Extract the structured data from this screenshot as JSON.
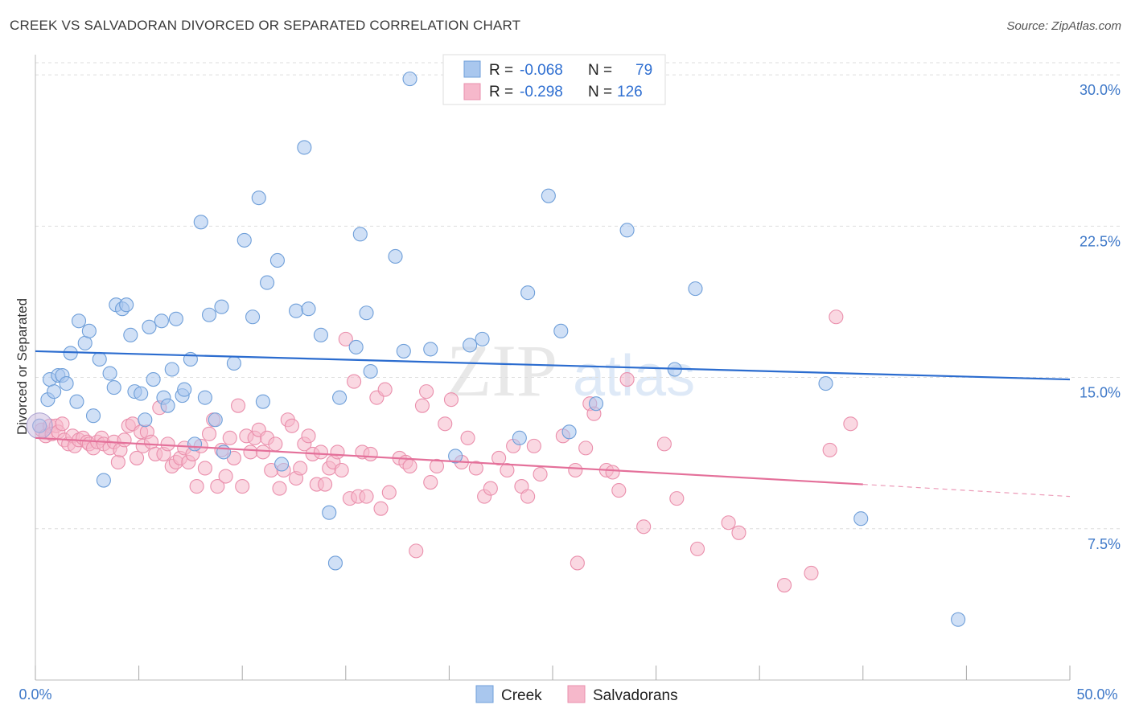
{
  "header": {
    "title": "CREEK VS SALVADORAN DIVORCED OR SEPARATED CORRELATION CHART",
    "source": "Source: ZipAtlas.com"
  },
  "colors": {
    "creek_fill": "#a9c7ee",
    "creek_stroke": "#6f9fd9",
    "creek_line": "#2b6ccf",
    "salv_fill": "#f6b8cb",
    "salv_stroke": "#ea8fac",
    "salv_line": "#e4709a",
    "tick_label": "#3e78c8"
  },
  "legend": {
    "r_label": "R =",
    "n_label": "N =",
    "creek_r": "-0.068",
    "creek_n": "79",
    "salv_r": "-0.298",
    "salv_n": "126"
  },
  "bottom_legend": {
    "creek": "Creek",
    "salv": "Salvadorans"
  },
  "watermark": {
    "zip": "ZIP",
    "atlas": "atlas"
  },
  "chart_data": {
    "type": "scatter",
    "xlabel": "",
    "ylabel": "Divorced or Separated",
    "xlim": [
      0,
      50
    ],
    "ylim": [
      0,
      31
    ],
    "x_tick_labels": [
      "0.0%",
      "50.0%"
    ],
    "y_ticks": [
      7.5,
      15.0,
      22.5,
      30.0
    ],
    "y_tick_labels": [
      "7.5%",
      "15.0%",
      "22.5%",
      "30.0%"
    ],
    "grid": true,
    "series": [
      {
        "name": "Creek",
        "trend": {
          "x": [
            0,
            50
          ],
          "y": [
            16.3,
            14.9
          ]
        },
        "points": [
          [
            0.2,
            12.6
          ],
          [
            0.6,
            13.9
          ],
          [
            0.7,
            14.9
          ],
          [
            0.9,
            14.3
          ],
          [
            1.1,
            15.1
          ],
          [
            1.3,
            15.1
          ],
          [
            1.5,
            14.7
          ],
          [
            1.7,
            16.2
          ],
          [
            2.0,
            13.8
          ],
          [
            2.1,
            17.8
          ],
          [
            2.4,
            16.7
          ],
          [
            2.6,
            17.3
          ],
          [
            2.8,
            13.1
          ],
          [
            3.1,
            15.9
          ],
          [
            3.3,
            9.9
          ],
          [
            3.6,
            15.2
          ],
          [
            3.8,
            14.5
          ],
          [
            3.9,
            18.6
          ],
          [
            4.2,
            18.4
          ],
          [
            4.4,
            18.6
          ],
          [
            4.6,
            17.1
          ],
          [
            4.8,
            14.3
          ],
          [
            5.1,
            14.2
          ],
          [
            5.3,
            12.9
          ],
          [
            5.5,
            17.5
          ],
          [
            5.7,
            14.9
          ],
          [
            6.1,
            17.8
          ],
          [
            6.2,
            14.0
          ],
          [
            6.4,
            13.6
          ],
          [
            6.6,
            15.4
          ],
          [
            6.8,
            17.9
          ],
          [
            7.1,
            14.1
          ],
          [
            7.2,
            14.4
          ],
          [
            7.5,
            15.9
          ],
          [
            7.7,
            11.7
          ],
          [
            8.0,
            22.7
          ],
          [
            8.2,
            14.0
          ],
          [
            8.4,
            18.1
          ],
          [
            8.7,
            12.9
          ],
          [
            9.0,
            18.5
          ],
          [
            9.1,
            11.3
          ],
          [
            9.6,
            15.7
          ],
          [
            10.1,
            21.8
          ],
          [
            10.5,
            18.0
          ],
          [
            10.8,
            23.9
          ],
          [
            11.0,
            13.8
          ],
          [
            11.2,
            19.7
          ],
          [
            11.7,
            20.8
          ],
          [
            11.9,
            10.7
          ],
          [
            12.6,
            18.3
          ],
          [
            13.0,
            26.4
          ],
          [
            13.2,
            18.4
          ],
          [
            13.8,
            17.1
          ],
          [
            14.2,
            8.3
          ],
          [
            14.5,
            5.8
          ],
          [
            14.7,
            14.0
          ],
          [
            15.5,
            16.5
          ],
          [
            15.7,
            22.1
          ],
          [
            16.0,
            18.2
          ],
          [
            16.2,
            15.3
          ],
          [
            17.4,
            21.0
          ],
          [
            17.8,
            16.3
          ],
          [
            18.1,
            29.8
          ],
          [
            19.1,
            16.4
          ],
          [
            20.3,
            11.1
          ],
          [
            21.0,
            16.6
          ],
          [
            21.6,
            16.9
          ],
          [
            23.4,
            12.0
          ],
          [
            23.8,
            19.2
          ],
          [
            24.8,
            24.0
          ],
          [
            25.4,
            17.3
          ],
          [
            25.8,
            12.3
          ],
          [
            27.1,
            13.7
          ],
          [
            28.6,
            22.3
          ],
          [
            30.9,
            15.4
          ],
          [
            31.9,
            19.4
          ],
          [
            38.2,
            14.7
          ],
          [
            39.9,
            8.0
          ],
          [
            44.6,
            3.0
          ]
        ]
      },
      {
        "name": "Salvadorans",
        "trend": {
          "x": [
            0,
            40
          ],
          "y": [
            12.0,
            9.7
          ]
        },
        "trend_ext": {
          "x": [
            40,
            50
          ],
          "y": [
            9.7,
            9.1
          ]
        },
        "points": [
          [
            0.3,
            12.4
          ],
          [
            0.5,
            12.1
          ],
          [
            0.7,
            12.6
          ],
          [
            0.8,
            12.2
          ],
          [
            1.0,
            12.6
          ],
          [
            1.1,
            12.3
          ],
          [
            1.3,
            12.7
          ],
          [
            1.4,
            11.9
          ],
          [
            1.6,
            11.7
          ],
          [
            1.8,
            12.1
          ],
          [
            1.9,
            11.6
          ],
          [
            2.1,
            11.9
          ],
          [
            2.3,
            12.0
          ],
          [
            2.5,
            11.8
          ],
          [
            2.6,
            11.7
          ],
          [
            2.8,
            11.5
          ],
          [
            3.0,
            11.8
          ],
          [
            3.2,
            12.0
          ],
          [
            3.3,
            11.7
          ],
          [
            3.6,
            11.5
          ],
          [
            3.8,
            11.8
          ],
          [
            4.0,
            10.8
          ],
          [
            4.1,
            11.4
          ],
          [
            4.3,
            11.9
          ],
          [
            4.5,
            12.6
          ],
          [
            4.7,
            12.7
          ],
          [
            4.9,
            11.0
          ],
          [
            5.1,
            12.3
          ],
          [
            5.2,
            11.6
          ],
          [
            5.4,
            12.3
          ],
          [
            5.6,
            11.8
          ],
          [
            5.8,
            11.2
          ],
          [
            6.0,
            13.5
          ],
          [
            6.2,
            11.2
          ],
          [
            6.4,
            11.7
          ],
          [
            6.6,
            10.6
          ],
          [
            6.8,
            10.8
          ],
          [
            7.0,
            11.0
          ],
          [
            7.2,
            11.5
          ],
          [
            7.4,
            10.8
          ],
          [
            7.6,
            11.2
          ],
          [
            7.8,
            9.6
          ],
          [
            8.0,
            11.6
          ],
          [
            8.2,
            10.5
          ],
          [
            8.4,
            12.2
          ],
          [
            8.6,
            12.9
          ],
          [
            8.8,
            9.6
          ],
          [
            9.0,
            11.4
          ],
          [
            9.2,
            10.1
          ],
          [
            9.4,
            12.0
          ],
          [
            9.6,
            11.0
          ],
          [
            9.8,
            13.6
          ],
          [
            10.0,
            9.6
          ],
          [
            10.2,
            12.1
          ],
          [
            10.4,
            11.3
          ],
          [
            10.6,
            12.0
          ],
          [
            10.8,
            12.4
          ],
          [
            11.0,
            11.3
          ],
          [
            11.2,
            12.0
          ],
          [
            11.4,
            10.4
          ],
          [
            11.6,
            11.7
          ],
          [
            11.8,
            9.5
          ],
          [
            12.0,
            10.4
          ],
          [
            12.2,
            12.9
          ],
          [
            12.4,
            12.6
          ],
          [
            12.6,
            10.0
          ],
          [
            12.8,
            10.5
          ],
          [
            13.0,
            11.7
          ],
          [
            13.2,
            12.1
          ],
          [
            13.4,
            11.2
          ],
          [
            13.6,
            9.7
          ],
          [
            13.8,
            11.3
          ],
          [
            14.0,
            9.7
          ],
          [
            14.2,
            10.5
          ],
          [
            14.4,
            10.8
          ],
          [
            14.6,
            11.3
          ],
          [
            14.8,
            10.4
          ],
          [
            15.0,
            16.9
          ],
          [
            15.2,
            9.0
          ],
          [
            15.4,
            14.8
          ],
          [
            15.6,
            9.1
          ],
          [
            15.8,
            11.3
          ],
          [
            16.0,
            9.1
          ],
          [
            16.2,
            11.2
          ],
          [
            16.5,
            14.0
          ],
          [
            16.7,
            8.5
          ],
          [
            16.9,
            14.4
          ],
          [
            17.1,
            9.3
          ],
          [
            17.6,
            11.0
          ],
          [
            17.9,
            10.8
          ],
          [
            18.1,
            10.6
          ],
          [
            18.4,
            6.4
          ],
          [
            18.7,
            13.6
          ],
          [
            18.9,
            14.3
          ],
          [
            19.1,
            9.8
          ],
          [
            19.4,
            10.6
          ],
          [
            19.8,
            12.7
          ],
          [
            20.1,
            13.9
          ],
          [
            20.6,
            10.8
          ],
          [
            20.9,
            12.0
          ],
          [
            21.3,
            10.5
          ],
          [
            21.7,
            9.1
          ],
          [
            22.0,
            9.5
          ],
          [
            22.4,
            11.0
          ],
          [
            22.8,
            10.4
          ],
          [
            23.1,
            11.6
          ],
          [
            23.5,
            9.6
          ],
          [
            23.8,
            9.1
          ],
          [
            24.1,
            11.6
          ],
          [
            24.4,
            10.2
          ],
          [
            25.5,
            12.1
          ],
          [
            26.1,
            10.4
          ],
          [
            26.2,
            5.8
          ],
          [
            26.6,
            11.5
          ],
          [
            26.8,
            13.7
          ],
          [
            27.0,
            13.2
          ],
          [
            27.6,
            10.4
          ],
          [
            27.9,
            10.3
          ],
          [
            28.2,
            9.4
          ],
          [
            28.6,
            14.9
          ],
          [
            29.4,
            7.6
          ],
          [
            30.4,
            11.7
          ],
          [
            31.0,
            9.0
          ],
          [
            32.0,
            6.5
          ],
          [
            33.5,
            7.8
          ],
          [
            34.0,
            7.3
          ],
          [
            36.2,
            4.7
          ],
          [
            37.5,
            5.3
          ],
          [
            38.4,
            11.4
          ],
          [
            38.7,
            18.0
          ],
          [
            39.4,
            12.7
          ]
        ]
      }
    ]
  }
}
